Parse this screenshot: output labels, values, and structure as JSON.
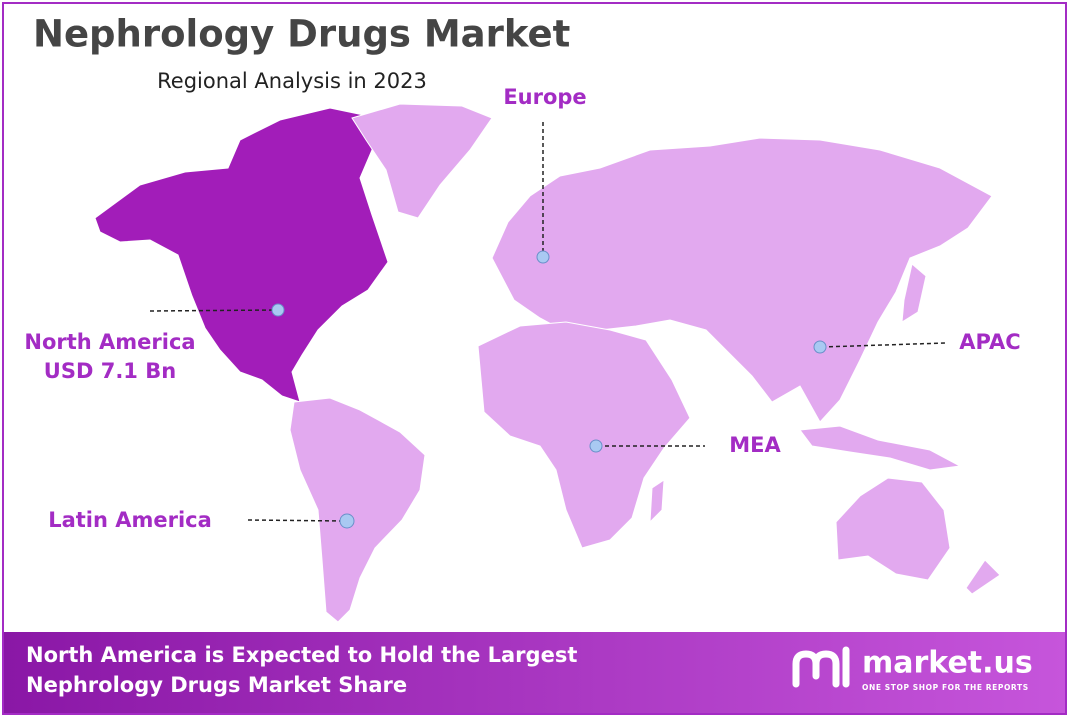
{
  "header": {
    "title": "Nephrology Drugs Market",
    "subtitle": "Regional Analysis in 2023"
  },
  "regions": [
    {
      "label": "North America",
      "value": "USD 7.1 Bn"
    },
    {
      "label": "Europe"
    },
    {
      "label": "APAC"
    },
    {
      "label": "MEA"
    },
    {
      "label": "Latin America"
    }
  ],
  "footer": {
    "lines": [
      "North America is Expected to Hold the Largest",
      "Nephrology Drugs Market Share"
    ],
    "brand": "market.us",
    "tagline": "ONE STOP SHOP FOR THE REPORTS"
  }
}
